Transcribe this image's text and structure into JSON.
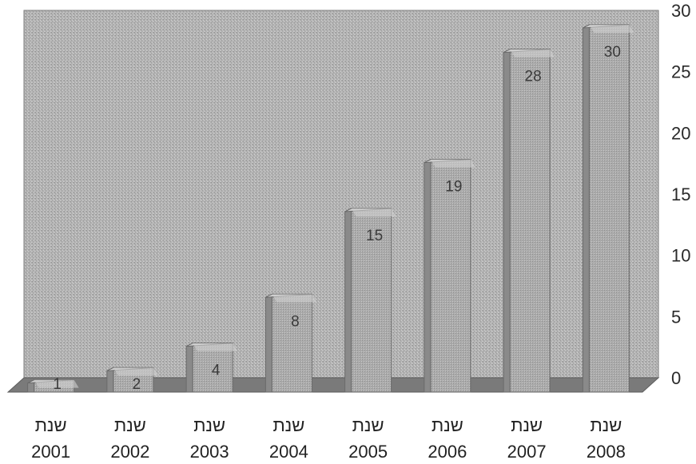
{
  "chart_data": {
    "type": "bar",
    "three_d": true,
    "categories": [
      "שנת 2001",
      "שנת 2002",
      "שנת 2003",
      "שנת 2004",
      "שנת 2005",
      "שנת 2006",
      "שנת 2007",
      "שנת 2008"
    ],
    "category_lines": [
      [
        "שנת",
        "2001"
      ],
      [
        "שנת",
        "2002"
      ],
      [
        "שנת",
        "2003"
      ],
      [
        "שנת",
        "2004"
      ],
      [
        "שנת",
        "2005"
      ],
      [
        "שנת",
        "2006"
      ],
      [
        "שנת",
        "2007"
      ],
      [
        "שנת",
        "2008"
      ]
    ],
    "values": [
      1,
      2,
      4,
      8,
      15,
      19,
      28,
      30
    ],
    "data_labels": [
      "1",
      "2",
      "4",
      "8",
      "15",
      "19",
      "28",
      "30"
    ],
    "title": "",
    "xlabel": "",
    "ylabel": "",
    "ylim": [
      0,
      30
    ],
    "yticks": [
      0,
      5,
      10,
      15,
      20,
      25,
      30
    ],
    "ytick_labels": [
      "0",
      "5",
      "10",
      "15",
      "20",
      "25",
      "30"
    ],
    "y_axis_side": "right",
    "grid": false,
    "legend": "none",
    "colors": {
      "back_wall": "#b4b4b4",
      "floor": "#7a7a7a",
      "bar_front": "#a8a8a8",
      "bar_side": "#8a8a8a",
      "bar_top": "#d0d0d0",
      "text": "#2a2a2a"
    }
  }
}
